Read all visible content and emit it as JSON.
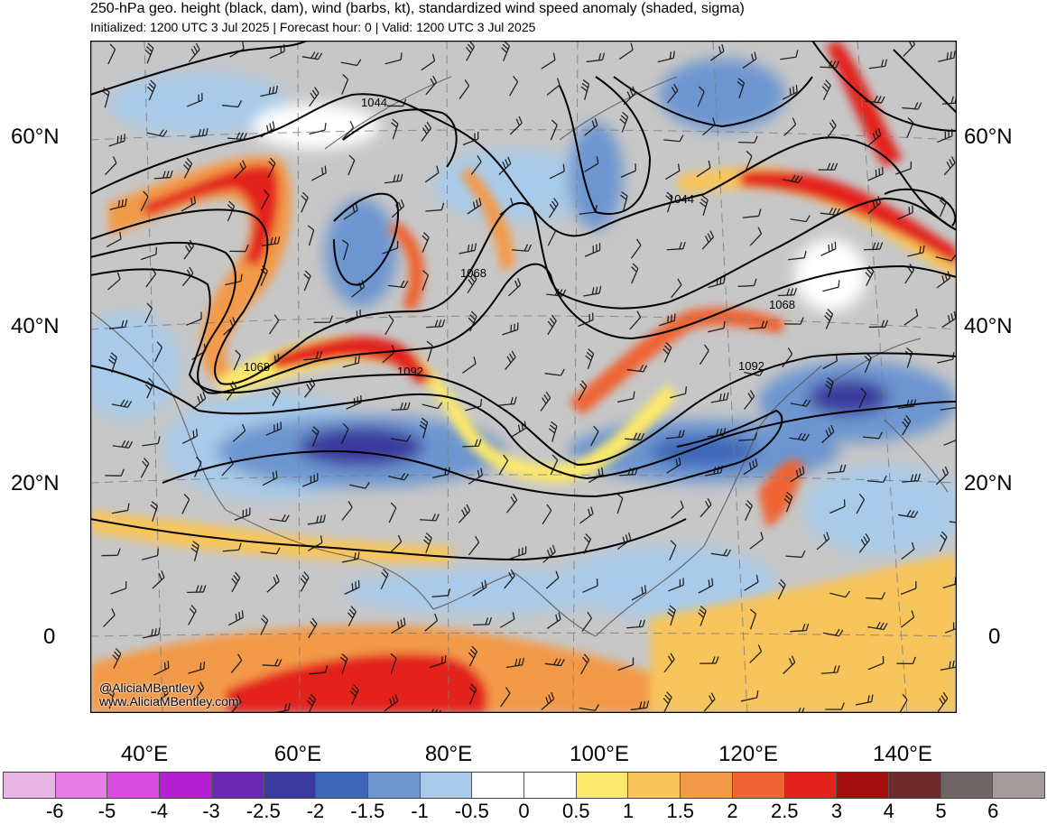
{
  "title": "250-hPa geo. height (black, dam), wind (barbs, kt), standardized wind speed anomaly (shaded, sigma)",
  "subtitle": "Initialized: 1200 UTC 3 Jul 2025 | Forecast hour: 0 | Valid: 1200 UTC 3 Jul 2025",
  "lat_labels": [
    "60°N",
    "40°N",
    "20°N",
    "0"
  ],
  "lon_labels": [
    "40°E",
    "60°E",
    "80°E",
    "100°E",
    "120°E",
    "140°E"
  ],
  "contour_labels": [
    "1044",
    "1044",
    "1068",
    "1068",
    "1068",
    "1092",
    "1092"
  ],
  "credit": {
    "handle": "@AliciaMBentley",
    "site": "www.AliciaMBentley.com"
  },
  "colorbar": {
    "colors": [
      "#e9b5e6",
      "#e57ee6",
      "#d84de0",
      "#b41fd1",
      "#6c2ab3",
      "#3a3a9e",
      "#3e67b8",
      "#6d96d0",
      "#a9cae8",
      "#ffffff",
      "#ffffff",
      "#fce86a",
      "#f7c55b",
      "#f39a48",
      "#ef6433",
      "#e3221c",
      "#a50d0d",
      "#6e2b2b",
      "#6f6564",
      "#a59b9b"
    ],
    "labels": [
      "-6",
      "-5",
      "-4",
      "-3",
      "-2.5",
      "-2",
      "-1.5",
      "-1",
      "-0.5",
      "0",
      "0.5",
      "1",
      "1.5",
      "2",
      "2.5",
      "3",
      "4",
      "5",
      "6"
    ]
  },
  "colors": {
    "background_gray": "#c7c7c7",
    "anomaly_high": "#e3221c",
    "anomaly_low": "#3e67b8"
  }
}
